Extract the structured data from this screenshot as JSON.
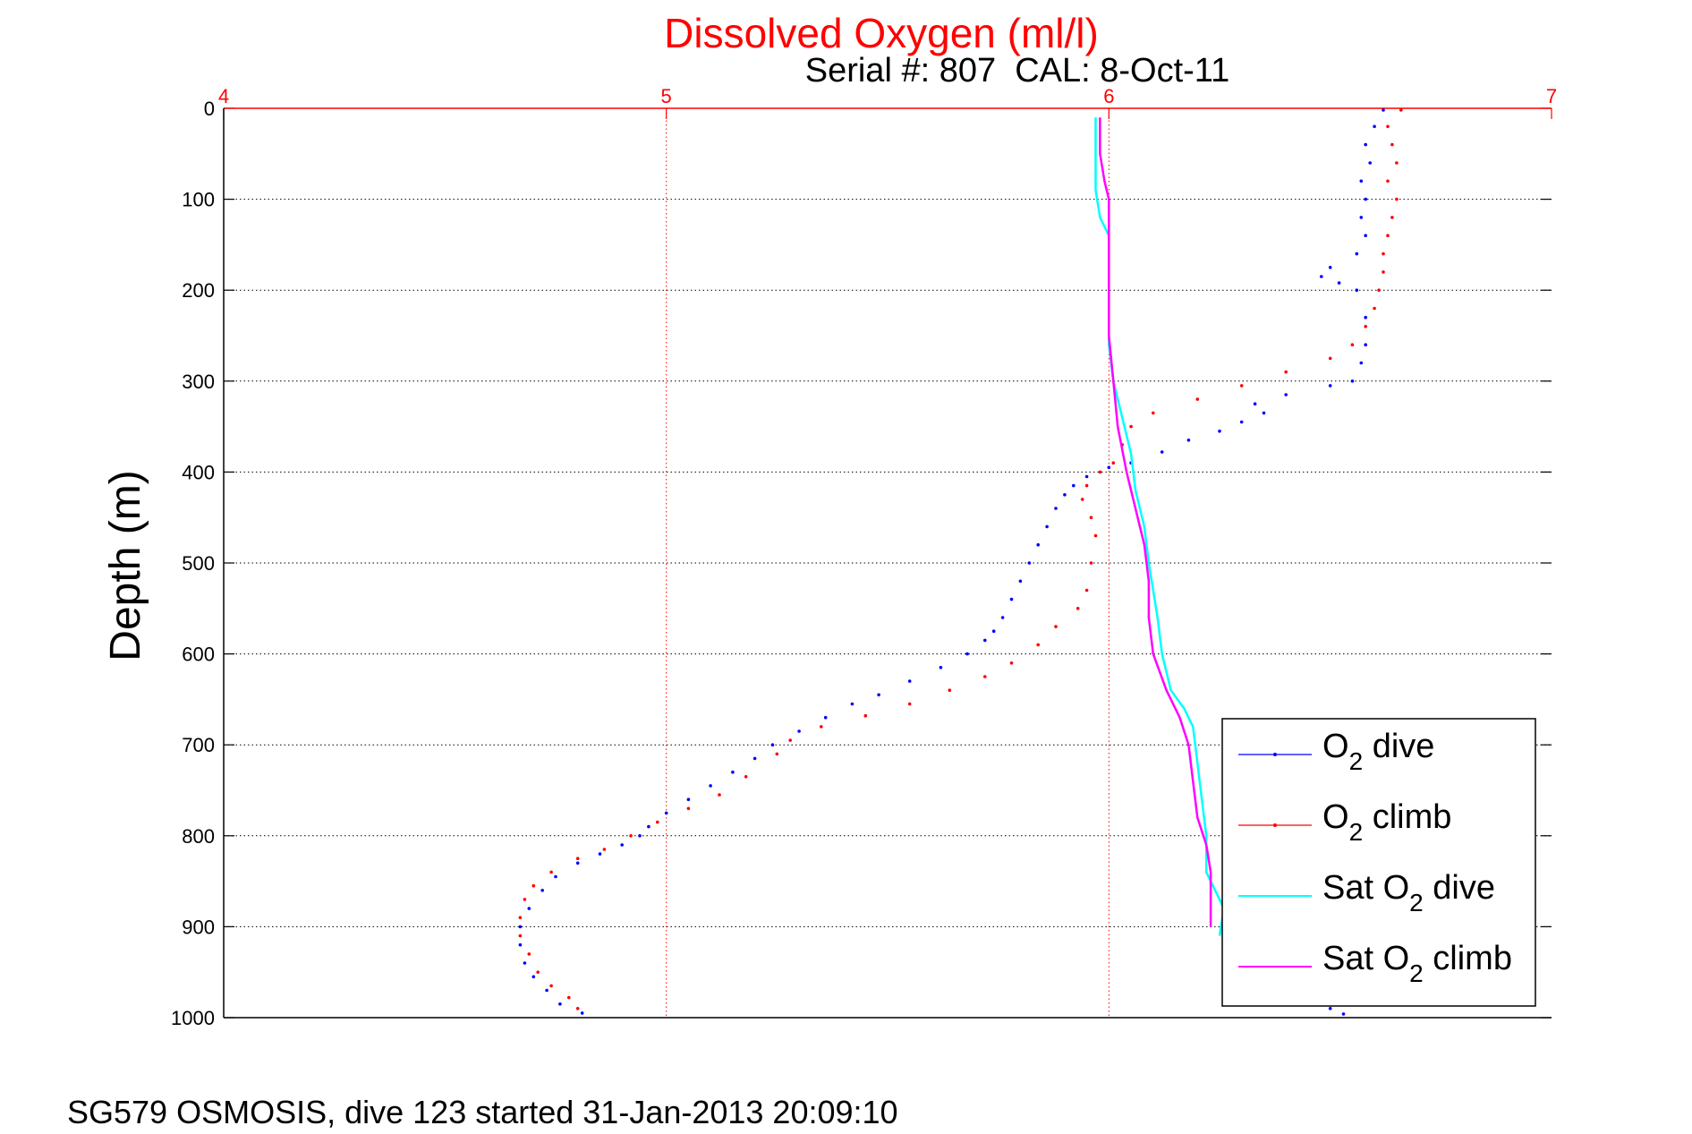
{
  "chart_data": {
    "type": "scatter",
    "title": "Dissolved Oxygen (ml/l)",
    "subtitle": "Serial #: 807  CAL: 8-Oct-11",
    "xlabel": "",
    "ylabel": "Depth (m)",
    "footer": "SG579 OSMOSIS, dive 123 started 31-Jan-2013 20:09:10",
    "xlim": [
      4,
      7
    ],
    "ylim": [
      0,
      1000
    ],
    "y_reversed": true,
    "x_axis_position": "top",
    "x_ticks": [
      4,
      5,
      6,
      7
    ],
    "y_ticks": [
      0,
      100,
      200,
      300,
      400,
      500,
      600,
      700,
      800,
      900,
      1000
    ],
    "grid": true,
    "legend_position": "bottom-right",
    "colors": {
      "title": "#ff0000",
      "x_axis": "#ff0000",
      "x_grid": "#ff0000",
      "y_grid": "#000000"
    },
    "series": [
      {
        "name": "O2 dive",
        "legend_base": "O",
        "legend_sub": "2",
        "legend_rest": " dive",
        "color": "#0000ff",
        "style": "dots",
        "points": [
          [
            6.62,
            2
          ],
          [
            6.6,
            20
          ],
          [
            6.58,
            40
          ],
          [
            6.59,
            60
          ],
          [
            6.57,
            80
          ],
          [
            6.58,
            100
          ],
          [
            6.57,
            120
          ],
          [
            6.58,
            140
          ],
          [
            6.56,
            160
          ],
          [
            6.5,
            175
          ],
          [
            6.48,
            185
          ],
          [
            6.52,
            192
          ],
          [
            6.56,
            200
          ],
          [
            6.58,
            230
          ],
          [
            6.58,
            260
          ],
          [
            6.57,
            280
          ],
          [
            6.55,
            300
          ],
          [
            6.5,
            305
          ],
          [
            6.4,
            315
          ],
          [
            6.33,
            325
          ],
          [
            6.35,
            335
          ],
          [
            6.3,
            345
          ],
          [
            6.25,
            355
          ],
          [
            6.18,
            365
          ],
          [
            6.12,
            378
          ],
          [
            6.05,
            390
          ],
          [
            6.0,
            395
          ],
          [
            5.95,
            405
          ],
          [
            5.92,
            415
          ],
          [
            5.9,
            425
          ],
          [
            5.88,
            440
          ],
          [
            5.86,
            460
          ],
          [
            5.84,
            480
          ],
          [
            5.82,
            500
          ],
          [
            5.8,
            520
          ],
          [
            5.78,
            540
          ],
          [
            5.76,
            560
          ],
          [
            5.74,
            575
          ],
          [
            5.72,
            585
          ],
          [
            5.68,
            600
          ],
          [
            5.62,
            615
          ],
          [
            5.55,
            630
          ],
          [
            5.48,
            645
          ],
          [
            5.42,
            655
          ],
          [
            5.36,
            670
          ],
          [
            5.3,
            685
          ],
          [
            5.24,
            700
          ],
          [
            5.2,
            715
          ],
          [
            5.15,
            730
          ],
          [
            5.1,
            745
          ],
          [
            5.05,
            760
          ],
          [
            5.0,
            775
          ],
          [
            4.96,
            790
          ],
          [
            4.94,
            800
          ],
          [
            4.9,
            810
          ],
          [
            4.85,
            820
          ],
          [
            4.8,
            830
          ],
          [
            4.75,
            845
          ],
          [
            4.72,
            860
          ],
          [
            4.69,
            880
          ],
          [
            4.67,
            900
          ],
          [
            4.67,
            920
          ],
          [
            4.68,
            940
          ],
          [
            4.7,
            955
          ],
          [
            4.73,
            970
          ],
          [
            4.76,
            985
          ],
          [
            4.81,
            995
          ],
          [
            6.5,
            990
          ],
          [
            6.53,
            996
          ]
        ]
      },
      {
        "name": "O2 climb",
        "legend_base": "O",
        "legend_sub": "2",
        "legend_rest": " climb",
        "color": "#ff0000",
        "style": "dots",
        "points": [
          [
            6.66,
            2
          ],
          [
            6.63,
            20
          ],
          [
            6.64,
            40
          ],
          [
            6.65,
            60
          ],
          [
            6.63,
            80
          ],
          [
            6.65,
            100
          ],
          [
            6.64,
            120
          ],
          [
            6.63,
            140
          ],
          [
            6.62,
            160
          ],
          [
            6.62,
            180
          ],
          [
            6.61,
            200
          ],
          [
            6.6,
            220
          ],
          [
            6.58,
            240
          ],
          [
            6.55,
            260
          ],
          [
            6.5,
            275
          ],
          [
            6.4,
            290
          ],
          [
            6.3,
            305
          ],
          [
            6.2,
            320
          ],
          [
            6.1,
            335
          ],
          [
            6.05,
            350
          ],
          [
            6.03,
            370
          ],
          [
            6.01,
            390
          ],
          [
            5.98,
            400
          ],
          [
            5.95,
            415
          ],
          [
            5.94,
            430
          ],
          [
            5.96,
            450
          ],
          [
            5.97,
            470
          ],
          [
            5.96,
            500
          ],
          [
            5.95,
            530
          ],
          [
            5.93,
            550
          ],
          [
            5.88,
            570
          ],
          [
            5.84,
            590
          ],
          [
            5.78,
            610
          ],
          [
            5.72,
            625
          ],
          [
            5.64,
            640
          ],
          [
            5.55,
            655
          ],
          [
            5.45,
            668
          ],
          [
            5.35,
            680
          ],
          [
            5.28,
            695
          ],
          [
            5.25,
            710
          ],
          [
            5.18,
            735
          ],
          [
            5.12,
            755
          ],
          [
            5.05,
            770
          ],
          [
            4.98,
            785
          ],
          [
            4.92,
            800
          ],
          [
            4.86,
            815
          ],
          [
            4.8,
            825
          ],
          [
            4.74,
            840
          ],
          [
            4.7,
            855
          ],
          [
            4.68,
            870
          ],
          [
            4.67,
            890
          ],
          [
            4.67,
            910
          ],
          [
            4.69,
            930
          ],
          [
            4.71,
            950
          ],
          [
            4.74,
            965
          ],
          [
            4.78,
            978
          ],
          [
            4.8,
            990
          ]
        ]
      },
      {
        "name": "Sat O2 dive",
        "legend_base": "Sat O",
        "legend_sub": "2",
        "legend_rest": " dive",
        "color": "#00ffff",
        "style": "line",
        "points": [
          [
            5.97,
            10
          ],
          [
            5.97,
            50
          ],
          [
            5.97,
            90
          ],
          [
            5.98,
            120
          ],
          [
            6.0,
            140
          ],
          [
            6.0,
            200
          ],
          [
            6.0,
            260
          ],
          [
            6.01,
            300
          ],
          [
            6.03,
            340
          ],
          [
            6.05,
            380
          ],
          [
            6.06,
            420
          ],
          [
            6.08,
            460
          ],
          [
            6.09,
            500
          ],
          [
            6.11,
            560
          ],
          [
            6.12,
            600
          ],
          [
            6.14,
            640
          ],
          [
            6.17,
            660
          ],
          [
            6.19,
            680
          ],
          [
            6.2,
            720
          ],
          [
            6.21,
            760
          ],
          [
            6.22,
            800
          ],
          [
            6.22,
            840
          ],
          [
            6.24,
            860
          ],
          [
            6.26,
            880
          ],
          [
            6.25,
            910
          ]
        ]
      },
      {
        "name": "Sat O2 climb",
        "legend_base": "Sat O",
        "legend_sub": "2",
        "legend_rest": " climb",
        "color": "#ff00ff",
        "style": "line",
        "points": [
          [
            5.98,
            10
          ],
          [
            5.98,
            50
          ],
          [
            5.99,
            80
          ],
          [
            6.0,
            100
          ],
          [
            6.0,
            150
          ],
          [
            6.0,
            250
          ],
          [
            6.01,
            300
          ],
          [
            6.02,
            350
          ],
          [
            6.04,
            400
          ],
          [
            6.06,
            440
          ],
          [
            6.08,
            480
          ],
          [
            6.09,
            520
          ],
          [
            6.09,
            560
          ],
          [
            6.1,
            600
          ],
          [
            6.13,
            640
          ],
          [
            6.16,
            670
          ],
          [
            6.18,
            700
          ],
          [
            6.19,
            740
          ],
          [
            6.2,
            780
          ],
          [
            6.22,
            810
          ],
          [
            6.23,
            840
          ],
          [
            6.23,
            870
          ],
          [
            6.23,
            900
          ]
        ]
      }
    ]
  }
}
